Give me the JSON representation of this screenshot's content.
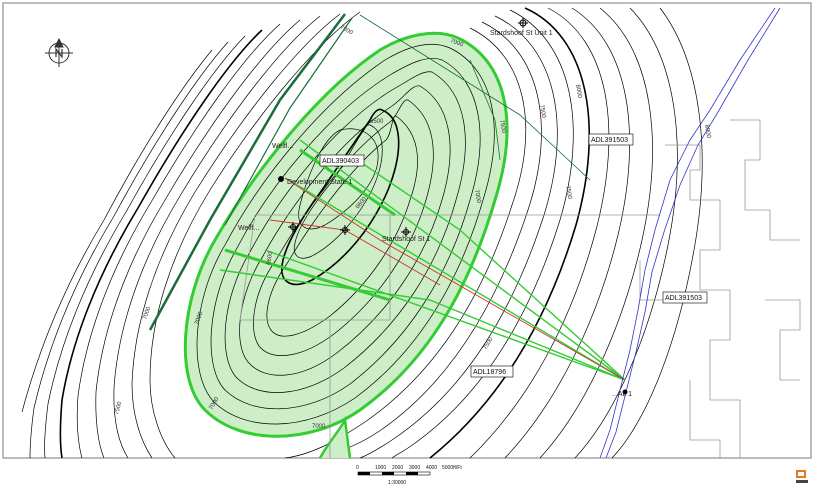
{
  "map": {
    "wells": {
      "stardshoof_unit": "Stardshoof St Unit 1",
      "development_state": "Development State 1",
      "stardshoof_st": "Stardshoof St 1",
      "well_lower_left": "Welfl...",
      "well_upper_left": "Welfl...",
      "offshore_well": "...AL 1"
    },
    "leases": {
      "lease_top": "ADL391503",
      "lease_center": "ADL390403",
      "lease_right": "ADL391503",
      "lease_bottom": "ADL18796"
    },
    "contours": {
      "c1": "7000",
      "c2": "6500",
      "c3": "6600",
      "c4": "7000",
      "c5": "7000",
      "c6": "7500",
      "c7": "8000",
      "c8": "7500",
      "c9": "7000",
      "c10": "7000",
      "c11": "6600",
      "c12": "7500",
      "c13": "7500",
      "c14": "7000",
      "c15": "7000",
      "c16": "8000",
      "c17": "7500"
    },
    "scale_bar": {
      "ticks": [
        "0",
        "1000",
        "2000",
        "3000",
        "4000",
        "5000ft/Ft"
      ],
      "ratio": "1:30000"
    },
    "colors": {
      "fill": "#cdeec7",
      "outline": "#33cc33",
      "contour": "#000000",
      "coast": "#3333cc",
      "fault": "#1a6e3c",
      "well_path": "#cc3333"
    },
    "icons": [
      "north-arrow-icon",
      "logo-icon"
    ]
  }
}
